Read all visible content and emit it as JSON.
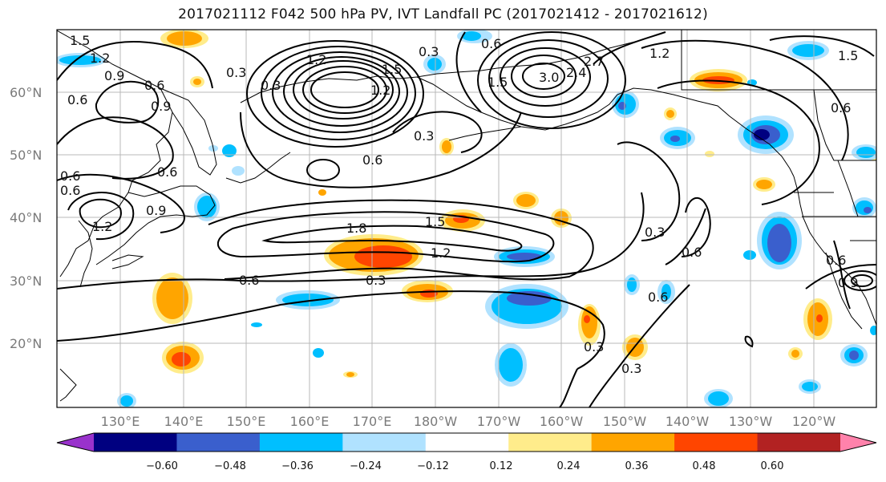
{
  "title": "2017021112 F042 500 hPa PV, IVT Landfall PC (2017021412 - 2017021612)",
  "lat_labels": [
    "60°N",
    "50°N",
    "40°N",
    "30°N",
    "20°N"
  ],
  "lon_labels": [
    "130°E",
    "140°E",
    "150°E",
    "160°E",
    "170°E",
    "180°W",
    "170°W",
    "160°W",
    "150°W",
    "140°W",
    "130°W",
    "120°W"
  ],
  "colorbar": {
    "colors": [
      "#9932cc",
      "#000080",
      "#3a5fcd",
      "#00bfff",
      "#b0e2ff",
      "#ffffff",
      "#ffec8b",
      "#ffa500",
      "#ff4500",
      "#b22222",
      "#ff82ab"
    ],
    "tick_labels": [
      "−0.60",
      "−0.48",
      "−0.36",
      "−0.24",
      "−0.12",
      "0.12",
      "0.24",
      "0.36",
      "0.48",
      "0.60"
    ]
  },
  "contour_labels": [
    "1.5",
    "1.2",
    "0.9",
    "0.6",
    "0.3",
    "0.6",
    "0.9",
    "1.2",
    "0.6",
    "0.3",
    "1.5",
    "1.2",
    "0.6",
    "0.3",
    "0.6",
    "1.2",
    "0.3",
    "0.6",
    "1.8",
    "1.5",
    "1.2",
    "0.3",
    "0.6",
    "0.9",
    "0.6",
    "0.6",
    "0.6",
    "0.3",
    "3.0",
    "2.4",
    "2.7",
    "1.5",
    "0.6",
    "0.6",
    "0.9",
    "0.3",
    "0.3",
    "1.5",
    "1.2"
  ]
}
